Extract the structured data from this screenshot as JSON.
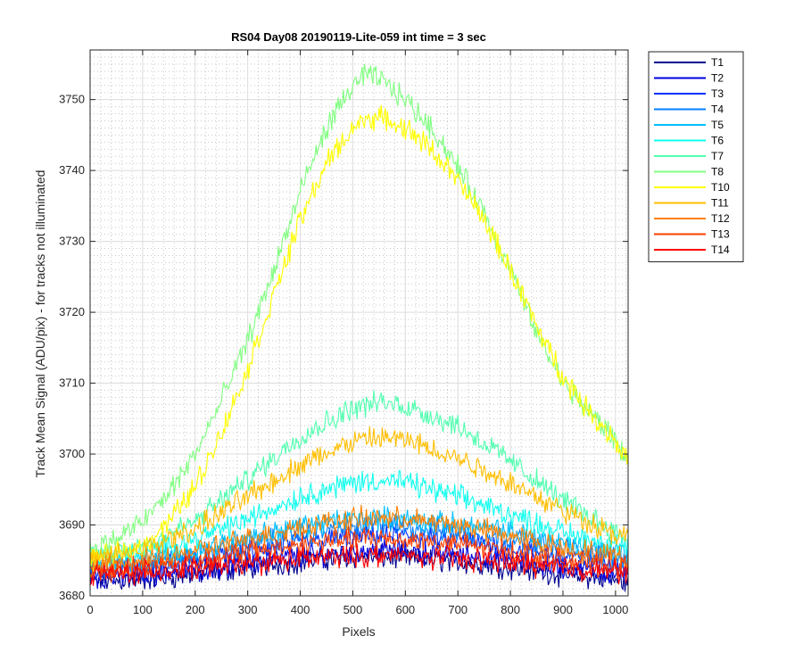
{
  "chart_data": {
    "type": "line",
    "title": "RS04 Day08 20190119-Lite-059 int time = 3 sec",
    "xlabel": "Pixels",
    "ylabel": "Track Mean Signal (ADU/pix) - for tracks not illuminated",
    "xlim": [
      0,
      1024
    ],
    "ylim": [
      3680,
      3757
    ],
    "xticks": [
      0,
      100,
      200,
      300,
      400,
      500,
      600,
      700,
      800,
      900,
      1000
    ],
    "yticks": [
      3680,
      3690,
      3700,
      3710,
      3720,
      3730,
      3740,
      3750
    ],
    "grid": true,
    "minor_grid": true,
    "legend_position": "outside-top-right",
    "series": [
      {
        "name": "T1",
        "color": "#00008f",
        "x": [
          0,
          100,
          200,
          300,
          400,
          500,
          550,
          600,
          700,
          800,
          900,
          1024
        ],
        "y": [
          3682,
          3682.3,
          3683,
          3684,
          3684.8,
          3685.5,
          3685.5,
          3685.3,
          3684.8,
          3684,
          3683,
          3682
        ]
      },
      {
        "name": "T2",
        "color": "#0000dd",
        "x": [
          0,
          100,
          200,
          300,
          400,
          500,
          550,
          600,
          700,
          800,
          900,
          1024
        ],
        "y": [
          3682.5,
          3683,
          3683.7,
          3684.6,
          3685.5,
          3686.3,
          3686.5,
          3686.3,
          3685.8,
          3685,
          3684,
          3683
        ]
      },
      {
        "name": "T3",
        "color": "#0030ff",
        "x": [
          0,
          100,
          200,
          300,
          400,
          500,
          550,
          600,
          700,
          800,
          900,
          1024
        ],
        "y": [
          3683.5,
          3684,
          3685,
          3686.2,
          3687.5,
          3688.3,
          3688.5,
          3688.4,
          3687.8,
          3686.8,
          3685.5,
          3684.3
        ]
      },
      {
        "name": "T4",
        "color": "#0080ff",
        "x": [
          0,
          100,
          200,
          300,
          400,
          500,
          550,
          600,
          700,
          800,
          900,
          1024
        ],
        "y": [
          3684,
          3684.5,
          3685.8,
          3687.3,
          3688.7,
          3689.7,
          3690,
          3689.8,
          3689,
          3688,
          3686.7,
          3685.3
        ]
      },
      {
        "name": "T5",
        "color": "#00c0ff",
        "x": [
          0,
          100,
          200,
          300,
          400,
          500,
          550,
          600,
          700,
          800,
          900,
          1024
        ],
        "y": [
          3684.3,
          3685,
          3686.5,
          3688.3,
          3689.8,
          3690.8,
          3691,
          3690.8,
          3690,
          3689,
          3687.5,
          3686
        ]
      },
      {
        "name": "T6",
        "color": "#10ffef",
        "x": [
          0,
          100,
          200,
          300,
          400,
          500,
          550,
          600,
          700,
          800,
          900,
          1024
        ],
        "y": [
          3685,
          3686,
          3688,
          3690.8,
          3694,
          3696,
          3696.3,
          3696,
          3694,
          3691.5,
          3689,
          3686.7
        ]
      },
      {
        "name": "T7",
        "color": "#50ffaf",
        "x": [
          0,
          100,
          200,
          300,
          400,
          500,
          550,
          600,
          700,
          800,
          900,
          1024
        ],
        "y": [
          3685.5,
          3687,
          3690.5,
          3696.5,
          3702.5,
          3706.5,
          3707.3,
          3706.8,
          3704,
          3699,
          3693.5,
          3688
        ]
      },
      {
        "name": "T8",
        "color": "#80ff80",
        "x": [
          0,
          50,
          100,
          150,
          200,
          250,
          300,
          350,
          400,
          450,
          500,
          525,
          550,
          600,
          650,
          700,
          750,
          800,
          850,
          900,
          950,
          1000,
          1024
        ],
        "y": [
          3686.5,
          3688,
          3690.5,
          3694.5,
          3700,
          3707.5,
          3716,
          3726,
          3737,
          3746,
          3752,
          3753.5,
          3753,
          3750,
          3746,
          3740.5,
          3734,
          3726,
          3717,
          3710,
          3706,
          3702,
          3699
        ]
      },
      {
        "name": "T10",
        "color": "#ffff00",
        "x": [
          0,
          50,
          100,
          150,
          200,
          250,
          300,
          350,
          400,
          450,
          500,
          525,
          550,
          600,
          650,
          700,
          750,
          800,
          850,
          900,
          950,
          1000,
          1024
        ],
        "y": [
          3685,
          3685.8,
          3687,
          3690.5,
          3695.5,
          3703,
          3712,
          3722.5,
          3733,
          3741,
          3746,
          3747.2,
          3747.5,
          3746,
          3743,
          3738.5,
          3733,
          3726,
          3718,
          3711,
          3706,
          3702,
          3699
        ]
      },
      {
        "name": "T11",
        "color": "#ffbf00",
        "x": [
          0,
          100,
          200,
          300,
          400,
          500,
          550,
          600,
          700,
          800,
          900,
          1024
        ],
        "y": [
          3685,
          3686.5,
          3689.5,
          3694,
          3698.5,
          3701.8,
          3702.3,
          3702,
          3699.5,
          3696,
          3692,
          3688
        ]
      },
      {
        "name": "T12",
        "color": "#ff8000",
        "x": [
          0,
          100,
          200,
          300,
          400,
          500,
          550,
          600,
          700,
          800,
          900,
          1024
        ],
        "y": [
          3684,
          3684.8,
          3686.3,
          3688,
          3689.8,
          3690.8,
          3691,
          3690.8,
          3690,
          3688.5,
          3686.8,
          3685.3
        ]
      },
      {
        "name": "T13",
        "color": "#ff4000",
        "x": [
          0,
          100,
          200,
          300,
          400,
          500,
          550,
          600,
          700,
          800,
          900,
          1024
        ],
        "y": [
          3683.5,
          3684,
          3685,
          3686.2,
          3687.3,
          3688,
          3688.1,
          3688,
          3687.3,
          3686.3,
          3685,
          3684
        ]
      },
      {
        "name": "T14",
        "color": "#ff0000",
        "x": [
          0,
          100,
          200,
          300,
          400,
          500,
          550,
          600,
          700,
          800,
          900,
          1024
        ],
        "y": [
          3683,
          3683.3,
          3683.8,
          3684.5,
          3685.2,
          3685.6,
          3685.7,
          3685.6,
          3685.2,
          3684.7,
          3684,
          3683.3
        ]
      }
    ]
  }
}
